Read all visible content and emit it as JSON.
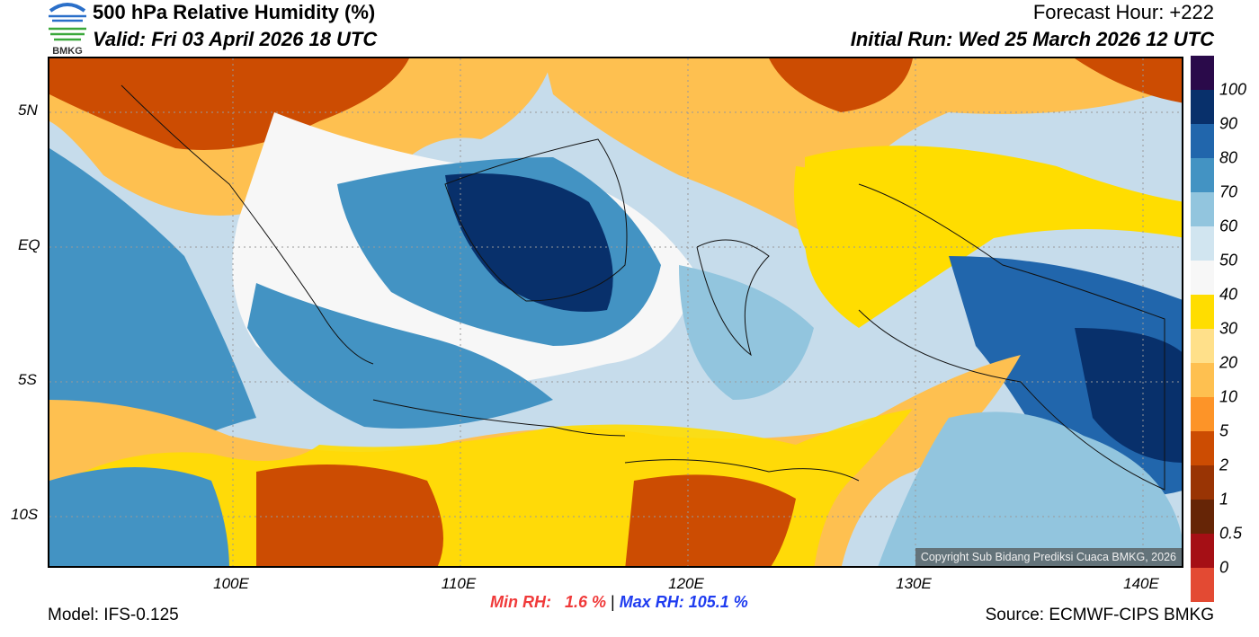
{
  "header": {
    "title": "500 hPa Relative Humidity (%)",
    "valid": "Valid: Fri 03 April 2026 18 UTC",
    "forecast_hour": "Forecast Hour: +222",
    "initial_run": "Initial Run: Wed 25 March 2026 12 UTC",
    "logo_text": "BMKG"
  },
  "axes": {
    "lat_labels": [
      "5N",
      "EQ",
      "5S",
      "10S"
    ],
    "lon_labels": [
      "100E",
      "110E",
      "120E",
      "130E",
      "140E"
    ]
  },
  "colorbar": {
    "labels": [
      "100",
      "90",
      "80",
      "70",
      "60",
      "50",
      "40",
      "30",
      "20",
      "10",
      "5",
      "2",
      "1",
      "0.5",
      "0"
    ],
    "colors": [
      "#2a0a4a",
      "#08306b",
      "#2166ac",
      "#4393c3",
      "#92c5de",
      "#d1e5f0",
      "#f7f7f7",
      "#ffdd00",
      "#ffe08a",
      "#fec050",
      "#fd9428",
      "#cc4c02",
      "#993404",
      "#662506",
      "#a50f15",
      "#e34a33"
    ]
  },
  "stats": {
    "min": "Min RH:   1.6 %",
    "sep": "|",
    "max": "Max RH: 105.1 %",
    "min_color": "#f03a3a",
    "max_color": "#1f3cf0"
  },
  "footer": {
    "model": "Model: IFS-0.125",
    "source": "Source: ECMWF-CIPS BMKG",
    "copyright": "Copyright Sub Bidang Prediksi Cuaca BMKG, 2026"
  }
}
